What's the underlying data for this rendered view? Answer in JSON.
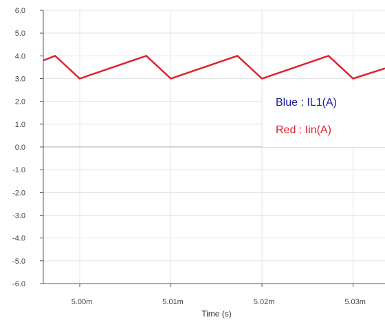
{
  "chart_data": {
    "type": "line",
    "xlabel": "Time (s)",
    "ylabel": "",
    "xlim": [
      4.996,
      5.0335
    ],
    "ylim": [
      -6.0,
      6.0
    ],
    "x_ticks": [
      {
        "value": 5.0,
        "label": "5.00m"
      },
      {
        "value": 5.01,
        "label": "5.01m"
      },
      {
        "value": 5.02,
        "label": "5.02m"
      },
      {
        "value": 5.03,
        "label": "5.03m"
      }
    ],
    "y_ticks": [
      {
        "value": 6.0,
        "label": "6.0"
      },
      {
        "value": 5.0,
        "label": "5.0"
      },
      {
        "value": 4.0,
        "label": "4.0"
      },
      {
        "value": 3.0,
        "label": "3.0"
      },
      {
        "value": 2.0,
        "label": "2.0"
      },
      {
        "value": 1.0,
        "label": "1.0"
      },
      {
        "value": 0.0,
        "label": "0.0"
      },
      {
        "value": -1.0,
        "label": "-1.0"
      },
      {
        "value": -2.0,
        "label": "-2.0"
      },
      {
        "value": -3.0,
        "label": "-3.0"
      },
      {
        "value": -4.0,
        "label": "-4.0"
      },
      {
        "value": -5.0,
        "label": "-5.0"
      },
      {
        "value": -6.0,
        "label": "-6.0"
      }
    ],
    "grid": true,
    "series": [
      {
        "name": "lin(A)",
        "color": "#e0202e",
        "x": [
          4.996,
          4.9973,
          5.0,
          5.0073,
          5.01,
          5.0173,
          5.02,
          5.0273,
          5.03,
          5.0335
        ],
        "y": [
          3.8,
          4.0,
          3.0,
          4.0,
          3.0,
          4.0,
          3.0,
          4.0,
          3.0,
          3.45
        ]
      }
    ],
    "legend": {
      "position": "right",
      "entries": [
        {
          "text": "Blue : IL1(A)",
          "color": "#1a1aa6"
        },
        {
          "text": "Red : Iin(A)",
          "color": "#e0202e"
        }
      ]
    }
  }
}
